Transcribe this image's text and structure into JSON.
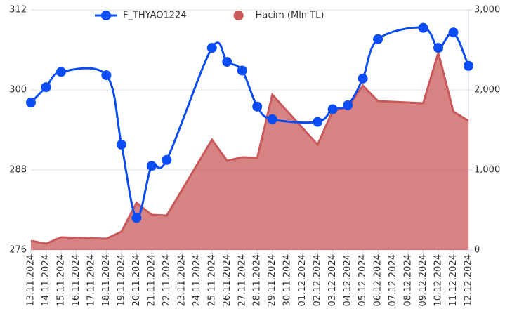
{
  "chart_data": {
    "type": "combo",
    "x": [
      "13.11.2024",
      "14.11.2024",
      "15.11.2024",
      "18.11.2024",
      "19.11.2024",
      "20.11.2024",
      "21.11.2024",
      "22.11.2024",
      "25.11.2024",
      "26.11.2024",
      "27.11.2024",
      "28.11.2024",
      "29.11.2024",
      "02.12.2024",
      "03.12.2024",
      "04.12.2024",
      "05.12.2024",
      "06.12.2024",
      "09.12.2024",
      "10.12.2024",
      "11.12.2024",
      "12.12.2024"
    ],
    "xticks": [
      "13.11.2024",
      "14.11.2024",
      "15.11.2024",
      "16.11.2024",
      "17.11.2024",
      "18.11.2024",
      "19.11.2024",
      "20.11.2024",
      "21.11.2024",
      "22.11.2024",
      "23.11.2024",
      "24.11.2024",
      "25.11.2024",
      "26.11.2024",
      "27.11.2024",
      "28.11.2024",
      "29.11.2024",
      "30.11.2024",
      "01.12.2024",
      "02.12.2024",
      "03.12.2024",
      "04.12.2024",
      "05.12.2024",
      "06.12.2024",
      "07.12.2024",
      "08.12.2024",
      "09.12.2024",
      "10.12.2024",
      "11.12.2024",
      "12.12.2024"
    ],
    "series": [
      {
        "name": "F_THYAO1224",
        "type": "line",
        "color": "#0b4cf5",
        "values": [
          298.1,
          300.4,
          302.7,
          302.2,
          291.8,
          280.8,
          288.6,
          289.5,
          306.3,
          304.2,
          302.9,
          297.5,
          295.6,
          295.2,
          297.1,
          297.7,
          301.7,
          307.6,
          309.3,
          306.3,
          308.6,
          303.6
        ]
      },
      {
        "name": "Hacim (Mln TL)",
        "type": "area",
        "axis": "y2",
        "color": "#c9585a",
        "values": [
          114,
          79,
          158,
          140,
          228,
          588,
          439,
          430,
          1377,
          1114,
          1158,
          1149,
          1939,
          1316,
          1737,
          1781,
          2053,
          1860,
          1833,
          2465,
          1728,
          1614
        ]
      }
    ],
    "ylim": [
      276,
      312
    ],
    "yticks": [
      276,
      288,
      300,
      312
    ],
    "y2lim": [
      0,
      3000
    ],
    "y2ticks": [
      0,
      {
        "value": 1000,
        "label": "1,000"
      },
      {
        "value": 2000,
        "label": "2,000"
      },
      {
        "value": 3000,
        "label": "3,000"
      }
    ],
    "grid": true,
    "legend": "top"
  }
}
